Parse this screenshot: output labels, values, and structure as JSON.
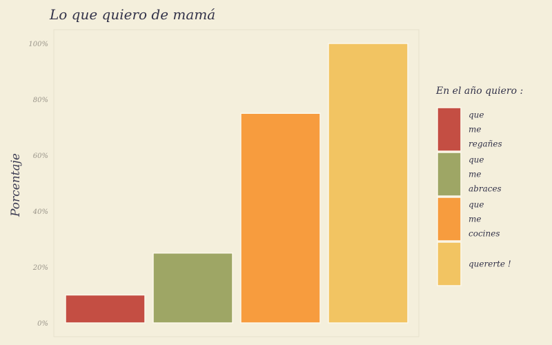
{
  "chart_data": {
    "type": "bar",
    "title": "Lo que quiero de mamá",
    "xlabel": "",
    "ylabel": "Porcentaje",
    "ylim": [
      0,
      100
    ],
    "y_ticks": [
      "0%",
      "20%",
      "40%",
      "60%",
      "80%",
      "100%"
    ],
    "legend_title": "En el año quiero :",
    "legend_position": "right",
    "grid": false,
    "categories": [
      "que me regañes",
      "que me abraces",
      "que me cocines",
      "quererte !"
    ],
    "legend_lines": [
      [
        "que",
        "me",
        "regañes"
      ],
      [
        "que",
        "me",
        "abraces"
      ],
      [
        "que",
        "me",
        "cocines"
      ],
      [
        "quererte !"
      ]
    ],
    "values": [
      10,
      25,
      75,
      100
    ],
    "colors": [
      "#c44e43",
      "#9ea665",
      "#f79c3e",
      "#f2c462"
    ]
  }
}
